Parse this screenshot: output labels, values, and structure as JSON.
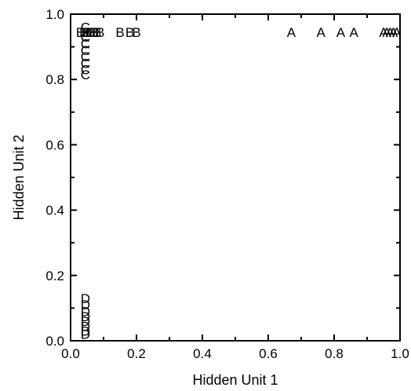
{
  "chart_data": {
    "type": "scatter",
    "title": "",
    "xlabel": "Hidden Unit 1",
    "ylabel": "Hidden Unit 2",
    "xlim": [
      0.0,
      1.0
    ],
    "ylim": [
      0.0,
      1.0
    ],
    "xticks": [
      "0.0",
      "0.2",
      "0.4",
      "0.6",
      "0.8",
      "1.0"
    ],
    "yticks": [
      "0.0",
      "0.2",
      "0.4",
      "0.6",
      "0.8",
      "1.0"
    ],
    "grid": false,
    "legend": "none",
    "series": [
      {
        "marker": "A",
        "points": [
          {
            "x": 0.67,
            "y": 0.945
          },
          {
            "x": 0.76,
            "y": 0.945
          },
          {
            "x": 0.82,
            "y": 0.945
          },
          {
            "x": 0.86,
            "y": 0.945
          },
          {
            "x": 0.95,
            "y": 0.945
          },
          {
            "x": 0.96,
            "y": 0.945
          },
          {
            "x": 0.97,
            "y": 0.945
          },
          {
            "x": 0.98,
            "y": 0.945
          },
          {
            "x": 0.99,
            "y": 0.945
          }
        ]
      },
      {
        "marker": "B",
        "points": [
          {
            "x": 0.03,
            "y": 0.945
          },
          {
            "x": 0.04,
            "y": 0.945
          },
          {
            "x": 0.05,
            "y": 0.945
          },
          {
            "x": 0.06,
            "y": 0.945
          },
          {
            "x": 0.07,
            "y": 0.945
          },
          {
            "x": 0.08,
            "y": 0.945
          },
          {
            "x": 0.09,
            "y": 0.945
          },
          {
            "x": 0.15,
            "y": 0.945
          },
          {
            "x": 0.18,
            "y": 0.945
          },
          {
            "x": 0.2,
            "y": 0.945
          }
        ]
      },
      {
        "marker": "C",
        "points": [
          {
            "x": 0.045,
            "y": 0.96
          },
          {
            "x": 0.045,
            "y": 0.93
          },
          {
            "x": 0.045,
            "y": 0.91
          },
          {
            "x": 0.045,
            "y": 0.89
          },
          {
            "x": 0.045,
            "y": 0.87
          },
          {
            "x": 0.045,
            "y": 0.85
          },
          {
            "x": 0.045,
            "y": 0.83
          },
          {
            "x": 0.045,
            "y": 0.815
          }
        ]
      },
      {
        "marker": "D",
        "points": [
          {
            "x": 0.045,
            "y": 0.13
          },
          {
            "x": 0.045,
            "y": 0.11
          },
          {
            "x": 0.045,
            "y": 0.09
          },
          {
            "x": 0.045,
            "y": 0.075
          },
          {
            "x": 0.045,
            "y": 0.06
          },
          {
            "x": 0.045,
            "y": 0.045
          },
          {
            "x": 0.045,
            "y": 0.03
          },
          {
            "x": 0.045,
            "y": 0.02
          }
        ]
      }
    ]
  }
}
